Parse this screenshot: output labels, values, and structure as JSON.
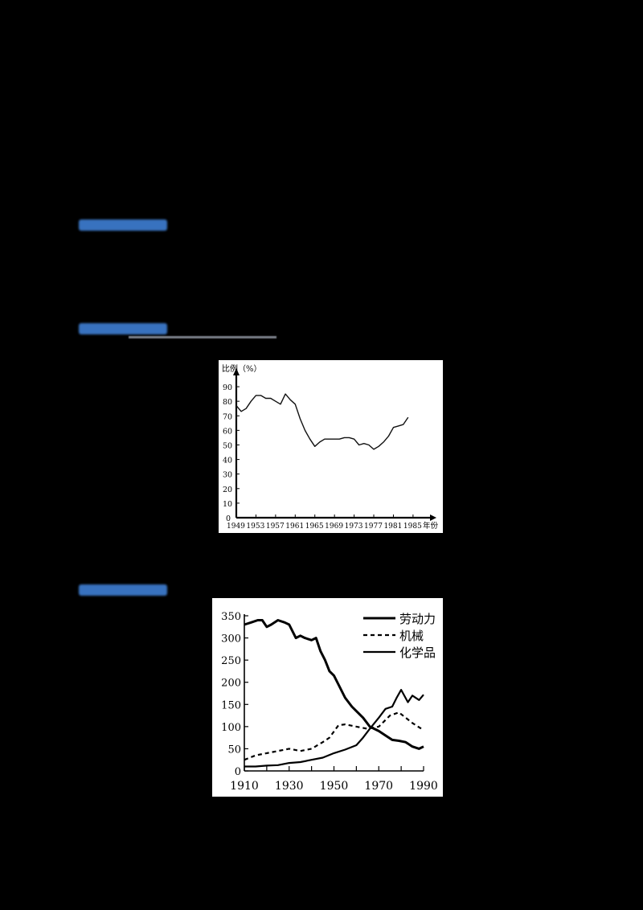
{
  "page": {
    "background": "#000000",
    "heading_color": "#3f7fd4"
  },
  "headings": [
    {
      "id": "heading-1",
      "text": "",
      "legible": false
    },
    {
      "id": "heading-2",
      "text": "",
      "legible": false
    },
    {
      "id": "heading-3",
      "text": "",
      "legible": false
    }
  ],
  "chart_data": [
    {
      "type": "line",
      "title": "",
      "ylabel": "比例（%）",
      "xlabel": "年份",
      "ylim": [
        0,
        95
      ],
      "yticks": [
        0,
        10,
        20,
        30,
        40,
        50,
        60,
        70,
        80,
        90
      ],
      "xticks": [
        1949,
        1953,
        1957,
        1961,
        1965,
        1969,
        1973,
        1977,
        1981,
        1985
      ],
      "grid": false,
      "series": [
        {
          "name": "比例",
          "x": [
            1949,
            1950,
            1951,
            1952,
            1953,
            1954,
            1955,
            1956,
            1957,
            1958,
            1959,
            1960,
            1961,
            1962,
            1963,
            1964,
            1965,
            1966,
            1967,
            1968,
            1969,
            1970,
            1971,
            1972,
            1973,
            1974,
            1975,
            1976,
            1977,
            1978,
            1979,
            1980,
            1981,
            1982,
            1983,
            1984
          ],
          "values": [
            77,
            73,
            75,
            80,
            84,
            84,
            82,
            82,
            80,
            78,
            85,
            81,
            78,
            68,
            60,
            54,
            49,
            52,
            54,
            54,
            54,
            54,
            55,
            55,
            54,
            50,
            51,
            50,
            47,
            49,
            52,
            56,
            62,
            63,
            64,
            69
          ]
        }
      ]
    },
    {
      "type": "line",
      "title": "",
      "xlabel": "",
      "ylabel": "",
      "xlim": [
        1910,
        1990
      ],
      "ylim": [
        0,
        350
      ],
      "xticks": [
        1910,
        1930,
        1950,
        1970,
        1990
      ],
      "yticks": [
        0,
        50,
        100,
        150,
        200,
        250,
        300,
        350
      ],
      "grid": false,
      "legend_position": "upper right",
      "series": [
        {
          "name": "劳动力",
          "style": "thick-solid",
          "x": [
            1910,
            1913,
            1916,
            1918,
            1920,
            1922,
            1925,
            1928,
            1930,
            1933,
            1935,
            1937,
            1940,
            1942,
            1944,
            1946,
            1948,
            1950,
            1952,
            1955,
            1958,
            1960,
            1963,
            1966,
            1970,
            1973,
            1976,
            1979,
            1982,
            1985,
            1988,
            1990
          ],
          "values": [
            330,
            335,
            340,
            340,
            325,
            330,
            340,
            335,
            330,
            300,
            305,
            300,
            295,
            300,
            270,
            250,
            225,
            215,
            195,
            165,
            145,
            135,
            120,
            100,
            90,
            80,
            70,
            68,
            65,
            55,
            50,
            55
          ]
        },
        {
          "name": "机械",
          "style": "dashed",
          "x": [
            1910,
            1915,
            1920,
            1925,
            1930,
            1935,
            1940,
            1945,
            1948,
            1952,
            1955,
            1960,
            1965,
            1970,
            1975,
            1979,
            1982,
            1985,
            1990
          ],
          "values": [
            25,
            35,
            40,
            45,
            50,
            45,
            50,
            65,
            75,
            103,
            105,
            100,
            95,
            100,
            125,
            132,
            120,
            108,
            92
          ]
        },
        {
          "name": "化学品",
          "style": "solid",
          "x": [
            1910,
            1915,
            1920,
            1925,
            1930,
            1935,
            1940,
            1945,
            1950,
            1955,
            1960,
            1963,
            1966,
            1970,
            1973,
            1976,
            1978,
            1980,
            1983,
            1985,
            1988,
            1990
          ],
          "values": [
            10,
            10,
            12,
            13,
            18,
            20,
            25,
            30,
            40,
            48,
            58,
            75,
            95,
            120,
            140,
            145,
            165,
            183,
            155,
            170,
            160,
            172
          ]
        }
      ]
    }
  ]
}
